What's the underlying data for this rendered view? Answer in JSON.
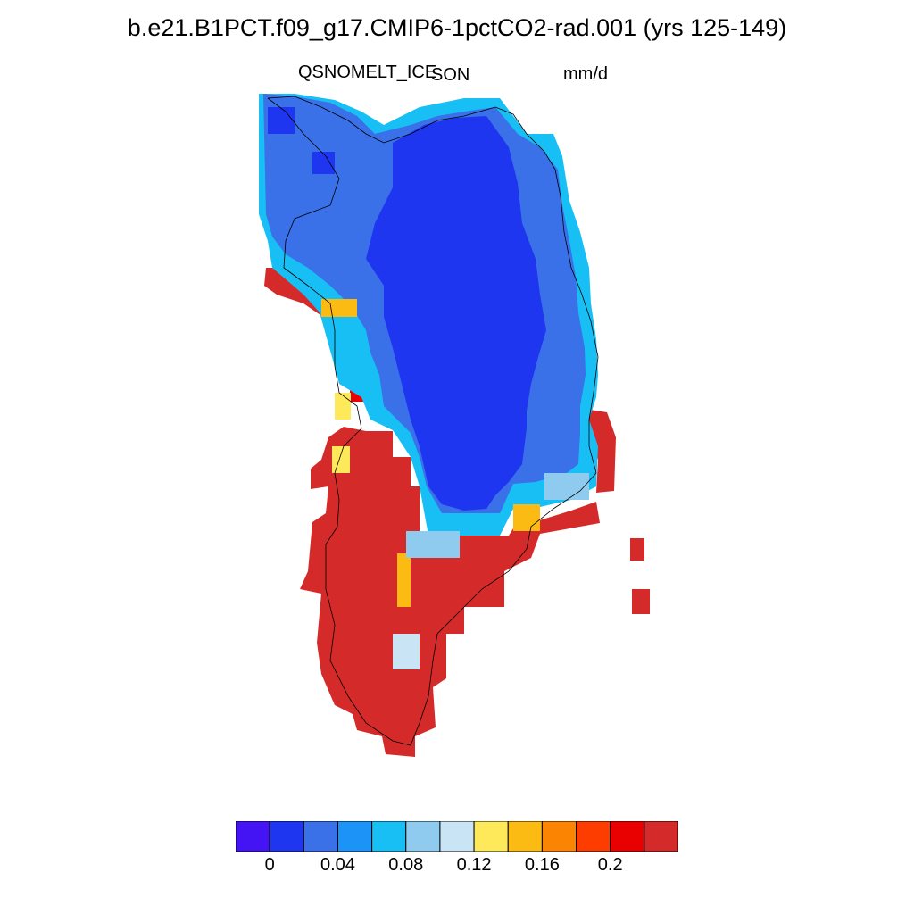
{
  "title": "b.e21.B1PCT.f09_g17.CMIP6-1pctCO2-rad.001 (yrs 125-149)",
  "variable": "QSNOMELT_ICE",
  "season": "SON",
  "units": "mm/d",
  "colorbar": {
    "colors": [
      "#4414f5",
      "#1f36f0",
      "#3a70e8",
      "#1b93f7",
      "#18bff5",
      "#8ecbee",
      "#c9e5f5",
      "#fde95a",
      "#fcbb12",
      "#fb8402",
      "#fd3d00",
      "#e90000",
      "#d42a2a"
    ],
    "tick_labels": [
      "0",
      "0.04",
      "0.08",
      "0.12",
      "0.16",
      "0.2"
    ]
  },
  "map_regions": [
    {
      "name": "interior-ice-sheet",
      "level": "0.02",
      "color": "#1f36f0"
    },
    {
      "name": "north-margin",
      "level": "0.04",
      "color": "#3a70e8"
    },
    {
      "name": "west-margin",
      "level": "0.08",
      "color": "#18bff5"
    },
    {
      "name": "southwest-margin",
      "level": "0.14",
      "color": "#fde95a"
    },
    {
      "name": "south-tip",
      "level": "0.24",
      "color": "#d42a2a"
    }
  ]
}
